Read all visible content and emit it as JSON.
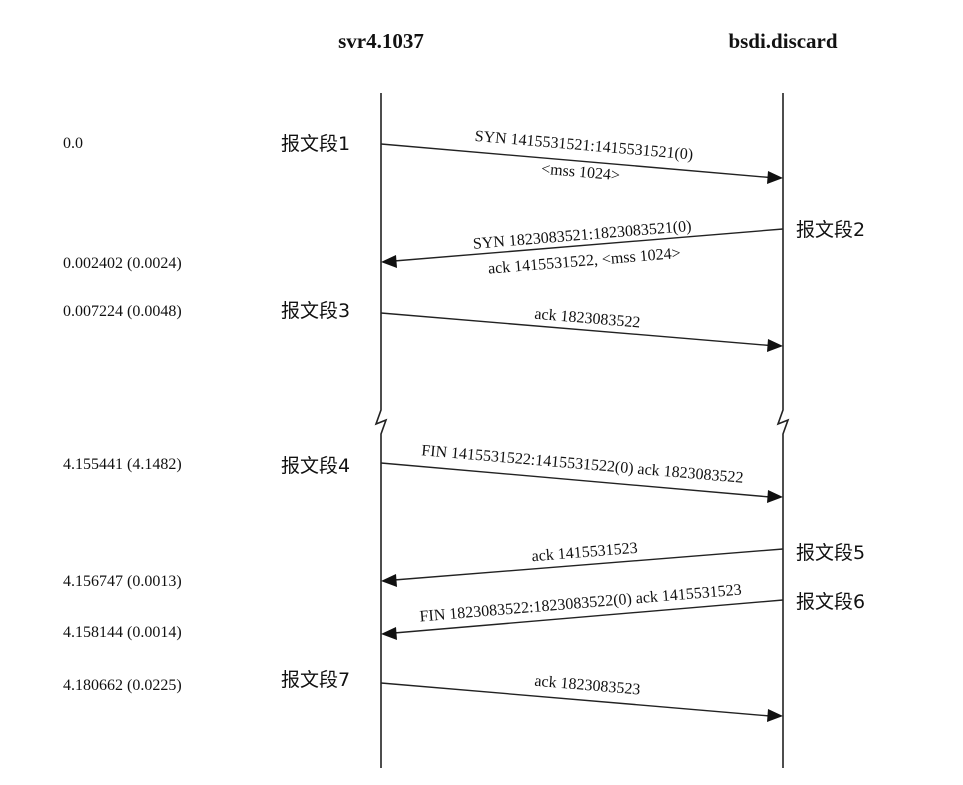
{
  "hosts": {
    "left": "svr4.1037",
    "right": "bsdi.discard"
  },
  "times": [
    "0.0",
    "0.002402 (0.0024)",
    "0.007224 (0.0048)",
    "4.155441 (4.1482)",
    "4.156747 (0.0013)",
    "4.158144 (0.0014)",
    "4.180662 (0.0225)"
  ],
  "segments": [
    "报文段1",
    "报文段2",
    "报文段3",
    "报文段4",
    "报文段5",
    "报文段6",
    "报文段7"
  ],
  "messages": [
    {
      "direction": "right",
      "line1": "SYN  1415531521:1415531521(0)",
      "line2": "<mss 1024>"
    },
    {
      "direction": "left",
      "line1": "SYN  1823083521:1823083521(0)",
      "line2": "ack 1415531522, <mss 1024>"
    },
    {
      "direction": "right",
      "line1": "ack 1823083522",
      "line2": ""
    },
    {
      "direction": "right",
      "line1": "FIN  1415531522:1415531522(0) ack 1823083522",
      "line2": ""
    },
    {
      "direction": "left",
      "line1": "ack 1415531523",
      "line2": ""
    },
    {
      "direction": "left",
      "line1": "FIN  1823083522:1823083522(0) ack 1415531523",
      "line2": ""
    },
    {
      "direction": "right",
      "line1": "ack 1823083523",
      "line2": ""
    }
  ]
}
